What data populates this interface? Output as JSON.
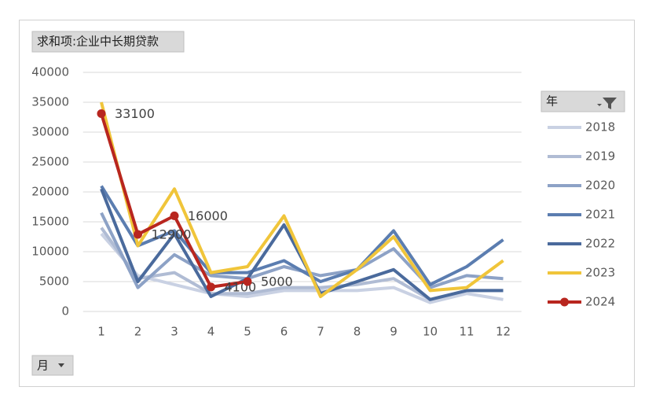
{
  "chart_data": {
    "type": "line",
    "value_field": "求和项:企业中长期贷款",
    "legend_title": "年",
    "x_field": "月",
    "categories": [
      "1",
      "2",
      "3",
      "4",
      "5",
      "6",
      "7",
      "8",
      "9",
      "10",
      "11",
      "12"
    ],
    "series": [
      {
        "name": "2018",
        "color": "#c9d1e3",
        "values": [
          13000,
          6000,
          4500,
          3000,
          2500,
          3500,
          3500,
          3500,
          4000,
          1500,
          3000,
          2000
        ]
      },
      {
        "name": "2019",
        "color": "#b0bcd4",
        "values": [
          14000,
          5500,
          6500,
          3000,
          3000,
          4000,
          4000,
          4500,
          5500,
          2000,
          3500,
          3500
        ]
      },
      {
        "name": "2020",
        "color": "#8da2c6",
        "values": [
          16500,
          4000,
          9500,
          6000,
          5500,
          7500,
          6000,
          7000,
          10500,
          4000,
          6000,
          5500
        ]
      },
      {
        "name": "2021",
        "color": "#5b7db0",
        "values": [
          21000,
          11000,
          13500,
          6500,
          6500,
          8500,
          5000,
          7000,
          13500,
          4500,
          7500,
          12000
        ]
      },
      {
        "name": "2022",
        "color": "#4a6a9c",
        "values": [
          20500,
          5000,
          13000,
          2500,
          5500,
          14500,
          3000,
          5000,
          7000,
          2000,
          3500,
          3500
        ]
      },
      {
        "name": "2023",
        "color": "#f0c53a",
        "values": [
          35000,
          11000,
          20500,
          6500,
          7500,
          16000,
          2500,
          7000,
          12500,
          3500,
          4000,
          8500
        ]
      },
      {
        "name": "2024",
        "color": "#b8261f",
        "markers": true,
        "data_labels": true,
        "values": [
          33100,
          12900,
          16000,
          4100,
          5000,
          null,
          null,
          null,
          null,
          null,
          null,
          null
        ]
      }
    ],
    "ylim": [
      0,
      40000
    ],
    "yticks": [
      0,
      5000,
      10000,
      15000,
      20000,
      25000,
      30000,
      35000,
      40000
    ],
    "grid": true,
    "legend": "right"
  }
}
